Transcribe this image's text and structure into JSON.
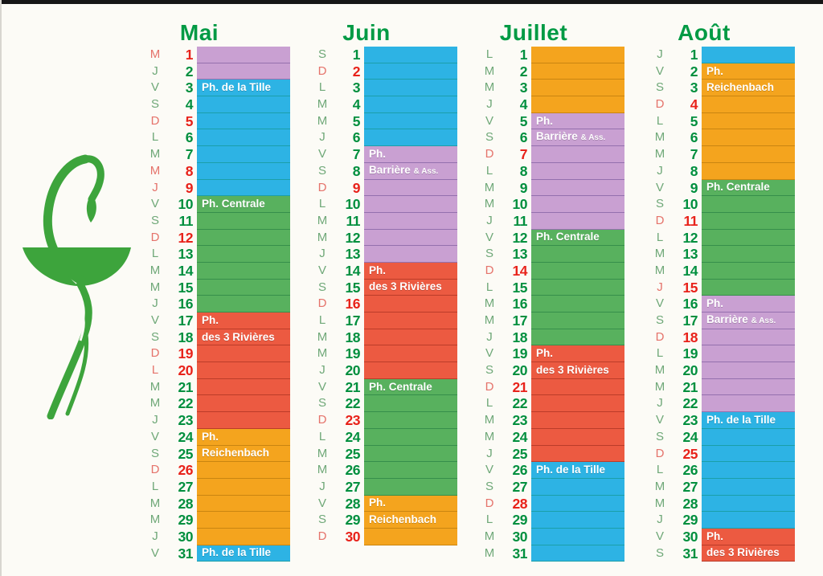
{
  "page": {
    "background": "#fcfbf6",
    "type": "pharmacy duty calendar (calendrier des pharmacies de garde)"
  },
  "logo": {
    "name": "pharmacy-caduceus",
    "color": "#3da43c"
  },
  "colors": {
    "title_green": "#009a44",
    "number_green": "#008f3e",
    "number_red": "#e8221a",
    "letter_green": "#6fa878",
    "letter_red": "#e5736b"
  },
  "pharmacies": {
    "tille": {
      "label": "Ph. de la Tille",
      "color": "#2db3e4",
      "sep": "rgba(0,130,80,0.40)"
    },
    "centrale": {
      "label": "Ph. Centrale",
      "color": "#58b15e",
      "sep": "rgba(0,90,45,0.38)"
    },
    "rivieres": {
      "label": "Ph. des 3 Rivières",
      "color": "#ec5a41",
      "sep": "rgba(120,20,10,0.42)"
    },
    "reichenbach": {
      "label": "Ph. Reichenbach",
      "color": "#f4a41e",
      "sep": "rgba(140,90,0,0.42)"
    },
    "barriere": {
      "label": "Ph. Barrière & Ass.",
      "color": "#c9a0d2",
      "sep": "rgba(70,40,120,0.40)"
    }
  },
  "months": [
    {
      "name": "Mai",
      "days": [
        {
          "d": 1,
          "w": "M",
          "r": 1,
          "p": "barriere"
        },
        {
          "d": 2,
          "w": "J",
          "r": 0,
          "p": "barriere"
        },
        {
          "d": 3,
          "w": "V",
          "r": 0,
          "p": "tille",
          "t": "Ph. de la Tille"
        },
        {
          "d": 4,
          "w": "S",
          "r": 0,
          "p": "tille"
        },
        {
          "d": 5,
          "w": "D",
          "r": 1,
          "p": "tille"
        },
        {
          "d": 6,
          "w": "L",
          "r": 0,
          "p": "tille"
        },
        {
          "d": 7,
          "w": "M",
          "r": 0,
          "p": "tille"
        },
        {
          "d": 8,
          "w": "M",
          "r": 1,
          "p": "tille"
        },
        {
          "d": 9,
          "w": "J",
          "r": 1,
          "p": "tille"
        },
        {
          "d": 10,
          "w": "V",
          "r": 0,
          "p": "centrale",
          "t": "Ph. Centrale"
        },
        {
          "d": 11,
          "w": "S",
          "r": 0,
          "p": "centrale"
        },
        {
          "d": 12,
          "w": "D",
          "r": 1,
          "p": "centrale"
        },
        {
          "d": 13,
          "w": "L",
          "r": 0,
          "p": "centrale"
        },
        {
          "d": 14,
          "w": "M",
          "r": 0,
          "p": "centrale"
        },
        {
          "d": 15,
          "w": "M",
          "r": 0,
          "p": "centrale"
        },
        {
          "d": 16,
          "w": "J",
          "r": 0,
          "p": "centrale"
        },
        {
          "d": 17,
          "w": "V",
          "r": 0,
          "p": "rivieres",
          "t": "Ph."
        },
        {
          "d": 18,
          "w": "S",
          "r": 0,
          "p": "rivieres",
          "t": "des 3 Rivières"
        },
        {
          "d": 19,
          "w": "D",
          "r": 1,
          "p": "rivieres"
        },
        {
          "d": 20,
          "w": "L",
          "r": 1,
          "p": "rivieres"
        },
        {
          "d": 21,
          "w": "M",
          "r": 0,
          "p": "rivieres"
        },
        {
          "d": 22,
          "w": "M",
          "r": 0,
          "p": "rivieres"
        },
        {
          "d": 23,
          "w": "J",
          "r": 0,
          "p": "rivieres"
        },
        {
          "d": 24,
          "w": "V",
          "r": 0,
          "p": "reichenbach",
          "t": "Ph."
        },
        {
          "d": 25,
          "w": "S",
          "r": 0,
          "p": "reichenbach",
          "t": "Reichenbach"
        },
        {
          "d": 26,
          "w": "D",
          "r": 1,
          "p": "reichenbach"
        },
        {
          "d": 27,
          "w": "L",
          "r": 0,
          "p": "reichenbach"
        },
        {
          "d": 28,
          "w": "M",
          "r": 0,
          "p": "reichenbach"
        },
        {
          "d": 29,
          "w": "M",
          "r": 0,
          "p": "reichenbach"
        },
        {
          "d": 30,
          "w": "J",
          "r": 0,
          "p": "reichenbach"
        },
        {
          "d": 31,
          "w": "V",
          "r": 0,
          "p": "tille",
          "t": "Ph. de la Tille"
        }
      ]
    },
    {
      "name": "Juin",
      "days": [
        {
          "d": 1,
          "w": "S",
          "r": 0,
          "p": "tille"
        },
        {
          "d": 2,
          "w": "D",
          "r": 1,
          "p": "tille"
        },
        {
          "d": 3,
          "w": "L",
          "r": 0,
          "p": "tille"
        },
        {
          "d": 4,
          "w": "M",
          "r": 0,
          "p": "tille"
        },
        {
          "d": 5,
          "w": "M",
          "r": 0,
          "p": "tille"
        },
        {
          "d": 6,
          "w": "J",
          "r": 0,
          "p": "tille"
        },
        {
          "d": 7,
          "w": "V",
          "r": 0,
          "p": "barriere",
          "t": "Ph."
        },
        {
          "d": 8,
          "w": "S",
          "r": 0,
          "p": "barriere",
          "t": "Barrière",
          "ts": "& Ass."
        },
        {
          "d": 9,
          "w": "D",
          "r": 1,
          "p": "barriere"
        },
        {
          "d": 10,
          "w": "L",
          "r": 0,
          "p": "barriere"
        },
        {
          "d": 11,
          "w": "M",
          "r": 0,
          "p": "barriere"
        },
        {
          "d": 12,
          "w": "M",
          "r": 0,
          "p": "barriere"
        },
        {
          "d": 13,
          "w": "J",
          "r": 0,
          "p": "barriere"
        },
        {
          "d": 14,
          "w": "V",
          "r": 0,
          "p": "rivieres",
          "t": "Ph."
        },
        {
          "d": 15,
          "w": "S",
          "r": 0,
          "p": "rivieres",
          "t": "des 3 Rivières"
        },
        {
          "d": 16,
          "w": "D",
          "r": 1,
          "p": "rivieres"
        },
        {
          "d": 17,
          "w": "L",
          "r": 0,
          "p": "rivieres"
        },
        {
          "d": 18,
          "w": "M",
          "r": 0,
          "p": "rivieres"
        },
        {
          "d": 19,
          "w": "M",
          "r": 0,
          "p": "rivieres"
        },
        {
          "d": 20,
          "w": "J",
          "r": 0,
          "p": "rivieres"
        },
        {
          "d": 21,
          "w": "V",
          "r": 0,
          "p": "centrale",
          "t": "Ph. Centrale"
        },
        {
          "d": 22,
          "w": "S",
          "r": 0,
          "p": "centrale"
        },
        {
          "d": 23,
          "w": "D",
          "r": 1,
          "p": "centrale"
        },
        {
          "d": 24,
          "w": "L",
          "r": 0,
          "p": "centrale"
        },
        {
          "d": 25,
          "w": "M",
          "r": 0,
          "p": "centrale"
        },
        {
          "d": 26,
          "w": "M",
          "r": 0,
          "p": "centrale"
        },
        {
          "d": 27,
          "w": "J",
          "r": 0,
          "p": "centrale"
        },
        {
          "d": 28,
          "w": "V",
          "r": 0,
          "p": "reichenbach",
          "t": "Ph."
        },
        {
          "d": 29,
          "w": "S",
          "r": 0,
          "p": "reichenbach",
          "t": "Reichenbach"
        },
        {
          "d": 30,
          "w": "D",
          "r": 1,
          "p": "reichenbach"
        }
      ]
    },
    {
      "name": "Juillet",
      "days": [
        {
          "d": 1,
          "w": "L",
          "r": 0,
          "p": "reichenbach"
        },
        {
          "d": 2,
          "w": "M",
          "r": 0,
          "p": "reichenbach"
        },
        {
          "d": 3,
          "w": "M",
          "r": 0,
          "p": "reichenbach"
        },
        {
          "d": 4,
          "w": "J",
          "r": 0,
          "p": "reichenbach"
        },
        {
          "d": 5,
          "w": "V",
          "r": 0,
          "p": "barriere",
          "t": "Ph."
        },
        {
          "d": 6,
          "w": "S",
          "r": 0,
          "p": "barriere",
          "t": "Barrière",
          "ts": "& Ass."
        },
        {
          "d": 7,
          "w": "D",
          "r": 1,
          "p": "barriere"
        },
        {
          "d": 8,
          "w": "L",
          "r": 0,
          "p": "barriere"
        },
        {
          "d": 9,
          "w": "M",
          "r": 0,
          "p": "barriere"
        },
        {
          "d": 10,
          "w": "M",
          "r": 0,
          "p": "barriere"
        },
        {
          "d": 11,
          "w": "J",
          "r": 0,
          "p": "barriere"
        },
        {
          "d": 12,
          "w": "V",
          "r": 0,
          "p": "centrale",
          "t": "Ph. Centrale"
        },
        {
          "d": 13,
          "w": "S",
          "r": 0,
          "p": "centrale"
        },
        {
          "d": 14,
          "w": "D",
          "r": 1,
          "p": "centrale"
        },
        {
          "d": 15,
          "w": "L",
          "r": 0,
          "p": "centrale"
        },
        {
          "d": 16,
          "w": "M",
          "r": 0,
          "p": "centrale"
        },
        {
          "d": 17,
          "w": "M",
          "r": 0,
          "p": "centrale"
        },
        {
          "d": 18,
          "w": "J",
          "r": 0,
          "p": "centrale"
        },
        {
          "d": 19,
          "w": "V",
          "r": 0,
          "p": "rivieres",
          "t": "Ph."
        },
        {
          "d": 20,
          "w": "S",
          "r": 0,
          "p": "rivieres",
          "t": "des 3 Rivières"
        },
        {
          "d": 21,
          "w": "D",
          "r": 1,
          "p": "rivieres"
        },
        {
          "d": 22,
          "w": "L",
          "r": 0,
          "p": "rivieres"
        },
        {
          "d": 23,
          "w": "M",
          "r": 0,
          "p": "rivieres"
        },
        {
          "d": 24,
          "w": "M",
          "r": 0,
          "p": "rivieres"
        },
        {
          "d": 25,
          "w": "J",
          "r": 0,
          "p": "rivieres"
        },
        {
          "d": 26,
          "w": "V",
          "r": 0,
          "p": "tille",
          "t": "Ph. de la Tille"
        },
        {
          "d": 27,
          "w": "S",
          "r": 0,
          "p": "tille"
        },
        {
          "d": 28,
          "w": "D",
          "r": 1,
          "p": "tille"
        },
        {
          "d": 29,
          "w": "L",
          "r": 0,
          "p": "tille"
        },
        {
          "d": 30,
          "w": "M",
          "r": 0,
          "p": "tille"
        },
        {
          "d": 31,
          "w": "M",
          "r": 0,
          "p": "tille"
        }
      ]
    },
    {
      "name": "Août",
      "days": [
        {
          "d": 1,
          "w": "J",
          "r": 0,
          "p": "tille"
        },
        {
          "d": 2,
          "w": "V",
          "r": 0,
          "p": "reichenbach",
          "t": "Ph."
        },
        {
          "d": 3,
          "w": "S",
          "r": 0,
          "p": "reichenbach",
          "t": "Reichenbach"
        },
        {
          "d": 4,
          "w": "D",
          "r": 1,
          "p": "reichenbach"
        },
        {
          "d": 5,
          "w": "L",
          "r": 0,
          "p": "reichenbach"
        },
        {
          "d": 6,
          "w": "M",
          "r": 0,
          "p": "reichenbach"
        },
        {
          "d": 7,
          "w": "M",
          "r": 0,
          "p": "reichenbach"
        },
        {
          "d": 8,
          "w": "J",
          "r": 0,
          "p": "reichenbach"
        },
        {
          "d": 9,
          "w": "V",
          "r": 0,
          "p": "centrale",
          "t": "Ph. Centrale"
        },
        {
          "d": 10,
          "w": "S",
          "r": 0,
          "p": "centrale"
        },
        {
          "d": 11,
          "w": "D",
          "r": 1,
          "p": "centrale"
        },
        {
          "d": 12,
          "w": "L",
          "r": 0,
          "p": "centrale"
        },
        {
          "d": 13,
          "w": "M",
          "r": 0,
          "p": "centrale"
        },
        {
          "d": 14,
          "w": "M",
          "r": 0,
          "p": "centrale"
        },
        {
          "d": 15,
          "w": "J",
          "r": 1,
          "p": "centrale"
        },
        {
          "d": 16,
          "w": "V",
          "r": 0,
          "p": "barriere",
          "t": "Ph."
        },
        {
          "d": 17,
          "w": "S",
          "r": 0,
          "p": "barriere",
          "t": "Barrière",
          "ts": "& Ass."
        },
        {
          "d": 18,
          "w": "D",
          "r": 1,
          "p": "barriere"
        },
        {
          "d": 19,
          "w": "L",
          "r": 0,
          "p": "barriere"
        },
        {
          "d": 20,
          "w": "M",
          "r": 0,
          "p": "barriere"
        },
        {
          "d": 21,
          "w": "M",
          "r": 0,
          "p": "barriere"
        },
        {
          "d": 22,
          "w": "J",
          "r": 0,
          "p": "barriere"
        },
        {
          "d": 23,
          "w": "V",
          "r": 0,
          "p": "tille",
          "t": "Ph. de la Tille"
        },
        {
          "d": 24,
          "w": "S",
          "r": 0,
          "p": "tille"
        },
        {
          "d": 25,
          "w": "D",
          "r": 1,
          "p": "tille"
        },
        {
          "d": 26,
          "w": "L",
          "r": 0,
          "p": "tille"
        },
        {
          "d": 27,
          "w": "M",
          "r": 0,
          "p": "tille"
        },
        {
          "d": 28,
          "w": "M",
          "r": 0,
          "p": "tille"
        },
        {
          "d": 29,
          "w": "J",
          "r": 0,
          "p": "tille"
        },
        {
          "d": 30,
          "w": "V",
          "r": 0,
          "p": "rivieres",
          "t": "Ph."
        },
        {
          "d": 31,
          "w": "S",
          "r": 0,
          "p": "rivieres",
          "t": "des 3 Rivières"
        }
      ]
    }
  ]
}
